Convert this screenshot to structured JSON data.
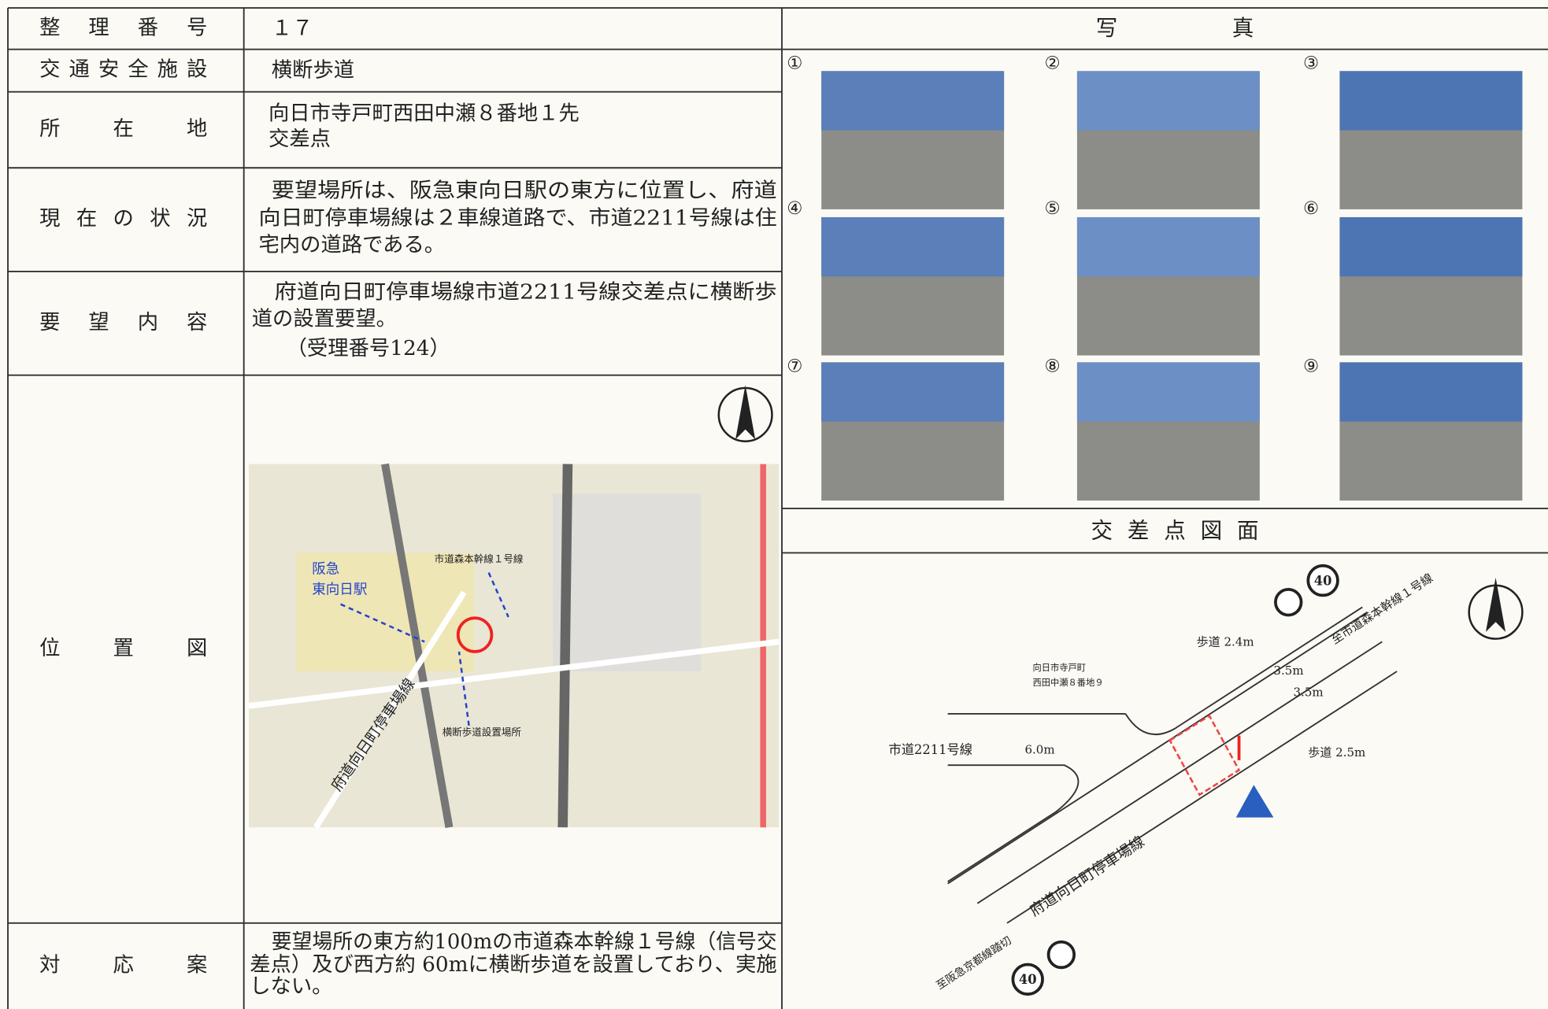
{
  "table": {
    "rows": [
      {
        "label": "整理番号",
        "value": [
          "１７"
        ]
      },
      {
        "label": "交通安全施設",
        "value": [
          "横断歩道"
        ]
      },
      {
        "label": "所在地",
        "value": [
          "向日市寺戸町西田中瀬８番地１先",
          "交差点"
        ]
      },
      {
        "label": "現在の状況",
        "value": [
          "要望場所は、阪急東向日駅の東方に位置し、府道",
          "向日町停車場線は２車線道路で、市道2211号線は住",
          "宅内の道路である。"
        ]
      },
      {
        "label": "要望内容",
        "value": [
          "府道向日町停車場線市道2211号線交差点に横断歩",
          "道の設置要望。",
          "（受理番号124）"
        ]
      },
      {
        "label": "位置図",
        "value": []
      },
      {
        "label": "対応案",
        "value": [
          "要望場所の東方約100mの市道森本幹線１号線（信号交",
          "差点）及び西方約 60mに横断歩道を設置しており、実施",
          "しない。"
        ]
      }
    ]
  },
  "map": {
    "labels": [
      "阪急",
      "東向日駅",
      "市道森本幹線１号線",
      "府道向日町停車場線",
      "横断歩道設置場所"
    ]
  },
  "photos": {
    "title": "写真",
    "numbers": [
      "①",
      "②",
      "③",
      "④",
      "⑤",
      "⑥",
      "⑦",
      "⑧",
      "⑨"
    ]
  },
  "diagram": {
    "title": "交差点図面",
    "labels": [
      "歩道 2.4m",
      "3.5m",
      "3.5m",
      "歩道 2.5m",
      "市道2211号線",
      "6.0m",
      "向日市寺戸町",
      "西田中瀬８番地９",
      "至市道森本幹線１号線",
      "府道向日町停車場線",
      "至阪急京都線踏切",
      "40",
      "40"
    ]
  }
}
